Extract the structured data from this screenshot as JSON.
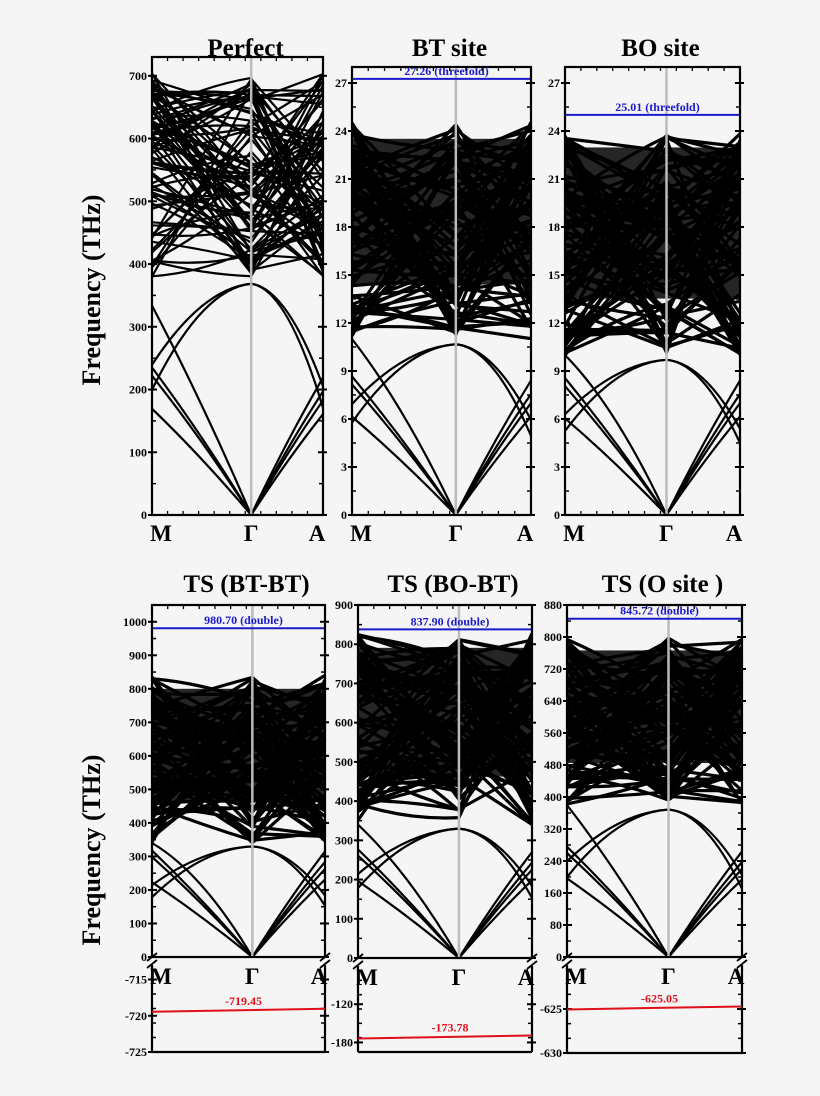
{
  "figure": {
    "ylabel": "Frequency (THz)",
    "kpoints": [
      "M",
      "Γ",
      "A"
    ],
    "colors": {
      "bands": "#000000",
      "gamma_line": "#bbbbbb",
      "highlight_mode": "#1a1acc",
      "imaginary_mode": "#e0101a",
      "background": "#f5f5f5"
    }
  },
  "chart_data": [
    {
      "type": "line",
      "panel": "Perfect",
      "title": "Perfect",
      "xlabel": "",
      "ylabel": "Frequency (THz)",
      "x_ticks": [
        "M",
        "Γ",
        "A"
      ],
      "y_ticks": [
        0,
        100,
        200,
        300,
        400,
        500,
        600,
        700
      ],
      "ylim": [
        0,
        730
      ],
      "dense_band_range": [
        380,
        705
      ],
      "highlight": null
    },
    {
      "type": "line",
      "panel": "BT site",
      "title": "BT site",
      "y_ticks": [
        0,
        3,
        6,
        9,
        12,
        15,
        18,
        21,
        24,
        27
      ],
      "ylim": [
        0,
        28
      ],
      "dense_band_range": [
        11,
        24.6
      ],
      "highlight": {
        "value": 27.26,
        "label": "27.26 (threefold)",
        "color": "#1a1acc"
      }
    },
    {
      "type": "line",
      "panel": "BO site",
      "title": "BO site",
      "y_ticks": [
        0,
        3,
        6,
        9,
        12,
        15,
        18,
        21,
        24,
        27
      ],
      "ylim": [
        0,
        28
      ],
      "dense_band_range": [
        10,
        24.1
      ],
      "highlight": {
        "value": 25.01,
        "label": "25.01 (threefold)",
        "color": "#1a1acc"
      }
    },
    {
      "type": "line",
      "panel": "TS (BT-BT)",
      "title": "TS (BT-BT)",
      "y_ticks": [
        0,
        100,
        200,
        300,
        400,
        500,
        600,
        700,
        800,
        900,
        1000
      ],
      "ylim": [
        0,
        1050
      ],
      "dense_band_range": [
        340,
        840
      ],
      "highlight": {
        "value": 980.7,
        "label": "980.70 (double)",
        "color": "#1a1acc"
      },
      "imaginary": {
        "value": -719.45,
        "label": "-719.45",
        "y_ticks": [
          -715,
          -720,
          -725
        ],
        "ylim": [
          -725,
          -713
        ],
        "color": "#e0101a"
      }
    },
    {
      "type": "line",
      "panel": "TS (BO-BT)",
      "title": "TS (BO-BT)",
      "y_ticks": [
        0,
        100,
        200,
        300,
        400,
        500,
        600,
        700,
        800,
        900
      ],
      "ylim": [
        0,
        900
      ],
      "dense_band_range": [
        340,
        830
      ],
      "highlight": {
        "value": 837.9,
        "label": "837.90 (double)",
        "color": "#1a1acc"
      },
      "imaginary": {
        "value": -173.78,
        "label": "-173.78",
        "y_ticks": [
          -120,
          -180
        ],
        "ylim": [
          -195,
          -60
        ],
        "color": "#e0101a"
      }
    },
    {
      "type": "line",
      "panel": "TS (O site )",
      "title": "TS (O site )",
      "y_ticks": [
        0,
        80,
        160,
        240,
        320,
        400,
        480,
        560,
        640,
        720,
        800,
        880
      ],
      "ylim": [
        0,
        880
      ],
      "dense_band_range": [
        380,
        800
      ],
      "highlight": {
        "value": 845.72,
        "label": "845.72 (double)",
        "color": "#1a1acc"
      },
      "imaginary": {
        "value": -625.05,
        "label": "-625.05",
        "y_ticks": [
          -625,
          -630
        ],
        "ylim": [
          -630,
          -620
        ],
        "color": "#e0101a"
      }
    }
  ]
}
